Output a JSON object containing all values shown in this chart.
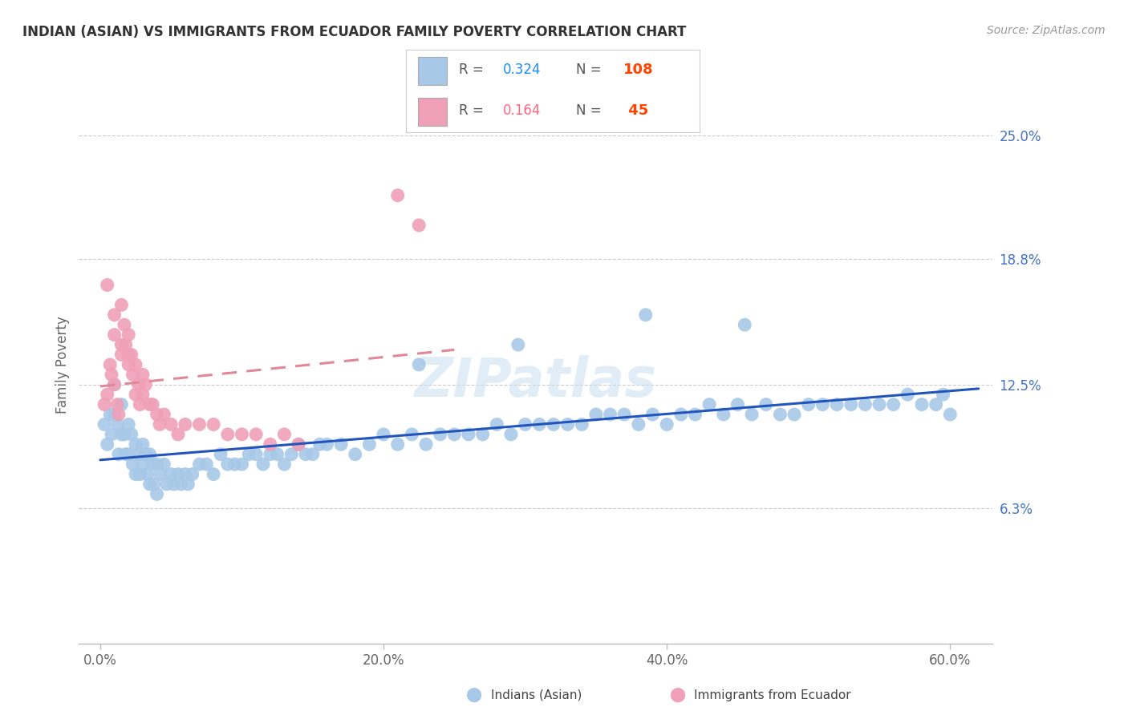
{
  "title": "INDIAN (ASIAN) VS IMMIGRANTS FROM ECUADOR FAMILY POVERTY CORRELATION CHART",
  "source": "Source: ZipAtlas.com",
  "ylabel": "Family Poverty",
  "ytick_labels": [
    "6.3%",
    "12.5%",
    "18.8%",
    "25.0%"
  ],
  "ytick_values": [
    6.3,
    12.5,
    18.8,
    25.0
  ],
  "xlim": [
    0.0,
    60.0
  ],
  "ylim": [
    0.0,
    27.0
  ],
  "x_tick_values": [
    0.0,
    20.0,
    40.0,
    60.0
  ],
  "blue_color": "#a8c8e8",
  "pink_color": "#f0a0b8",
  "blue_line_color": "#2255bb",
  "pink_line_color": "#e08898",
  "watermark": "ZIPatlas",
  "blue_R": 0.324,
  "blue_N": 108,
  "pink_R": 0.164,
  "pink_N": 45,
  "legend_R_color": "#1a8cff",
  "legend_N_color": "#ff4400",
  "legend_R2_color": "#ff6680",
  "legend_N2_color": "#ff4400",
  "blue_scatter_x": [
    0.3,
    0.5,
    0.7,
    0.8,
    1.0,
    1.0,
    1.2,
    1.3,
    1.5,
    1.5,
    1.7,
    1.8,
    2.0,
    2.0,
    2.2,
    2.3,
    2.5,
    2.5,
    2.7,
    2.8,
    3.0,
    3.0,
    3.2,
    3.3,
    3.5,
    3.5,
    3.7,
    3.8,
    4.0,
    4.0,
    4.2,
    4.5,
    4.7,
    5.0,
    5.2,
    5.5,
    5.7,
    6.0,
    6.2,
    6.5,
    7.0,
    7.5,
    8.0,
    8.5,
    9.0,
    9.5,
    10.0,
    10.5,
    11.0,
    11.5,
    12.0,
    12.5,
    13.0,
    13.5,
    14.0,
    14.5,
    15.0,
    15.5,
    16.0,
    17.0,
    18.0,
    19.0,
    20.0,
    21.0,
    22.0,
    23.0,
    24.0,
    25.0,
    26.0,
    27.0,
    28.0,
    29.0,
    30.0,
    31.0,
    32.0,
    33.0,
    34.0,
    35.0,
    36.0,
    37.0,
    38.0,
    39.0,
    40.0,
    41.0,
    42.0,
    43.0,
    44.0,
    45.0,
    46.0,
    47.0,
    48.0,
    49.0,
    50.0,
    51.0,
    52.0,
    53.0,
    54.0,
    55.0,
    56.0,
    57.0,
    58.0,
    59.0,
    59.5,
    60.0,
    45.5,
    38.5,
    29.5,
    22.5
  ],
  "blue_scatter_y": [
    10.5,
    9.5,
    11.0,
    10.0,
    12.5,
    11.0,
    10.5,
    9.0,
    11.5,
    10.0,
    10.0,
    9.0,
    10.5,
    9.0,
    10.0,
    8.5,
    9.5,
    8.0,
    9.0,
    8.0,
    9.5,
    8.5,
    9.0,
    8.0,
    9.0,
    7.5,
    8.5,
    7.5,
    8.5,
    7.0,
    8.0,
    8.5,
    7.5,
    8.0,
    7.5,
    8.0,
    7.5,
    8.0,
    7.5,
    8.0,
    8.5,
    8.5,
    8.0,
    9.0,
    8.5,
    8.5,
    8.5,
    9.0,
    9.0,
    8.5,
    9.0,
    9.0,
    8.5,
    9.0,
    9.5,
    9.0,
    9.0,
    9.5,
    9.5,
    9.5,
    9.0,
    9.5,
    10.0,
    9.5,
    10.0,
    9.5,
    10.0,
    10.0,
    10.0,
    10.0,
    10.5,
    10.0,
    10.5,
    10.5,
    10.5,
    10.5,
    10.5,
    11.0,
    11.0,
    11.0,
    10.5,
    11.0,
    10.5,
    11.0,
    11.0,
    11.5,
    11.0,
    11.5,
    11.0,
    11.5,
    11.0,
    11.0,
    11.5,
    11.5,
    11.5,
    11.5,
    11.5,
    11.5,
    11.5,
    12.0,
    11.5,
    11.5,
    12.0,
    11.0,
    15.5,
    16.0,
    14.5,
    13.5
  ],
  "pink_scatter_x": [
    0.3,
    0.5,
    0.7,
    0.8,
    1.0,
    1.0,
    1.2,
    1.3,
    1.5,
    1.5,
    1.7,
    1.8,
    2.0,
    2.0,
    2.2,
    2.3,
    2.5,
    2.5,
    2.7,
    2.8,
    3.0,
    3.0,
    3.2,
    3.5,
    3.7,
    4.0,
    4.2,
    4.5,
    5.0,
    5.5,
    6.0,
    7.0,
    8.0,
    9.0,
    10.0,
    11.0,
    12.0,
    13.0,
    14.0,
    0.5,
    1.0,
    1.5,
    2.0,
    21.0,
    22.5
  ],
  "pink_scatter_y": [
    11.5,
    12.0,
    13.5,
    13.0,
    15.0,
    12.5,
    11.5,
    11.0,
    16.5,
    14.0,
    15.5,
    14.5,
    15.0,
    13.5,
    14.0,
    13.0,
    13.5,
    12.0,
    12.5,
    11.5,
    13.0,
    12.0,
    12.5,
    11.5,
    11.5,
    11.0,
    10.5,
    11.0,
    10.5,
    10.0,
    10.5,
    10.5,
    10.5,
    10.0,
    10.0,
    10.0,
    9.5,
    10.0,
    9.5,
    17.5,
    16.0,
    14.5,
    14.0,
    22.0,
    20.5
  ]
}
